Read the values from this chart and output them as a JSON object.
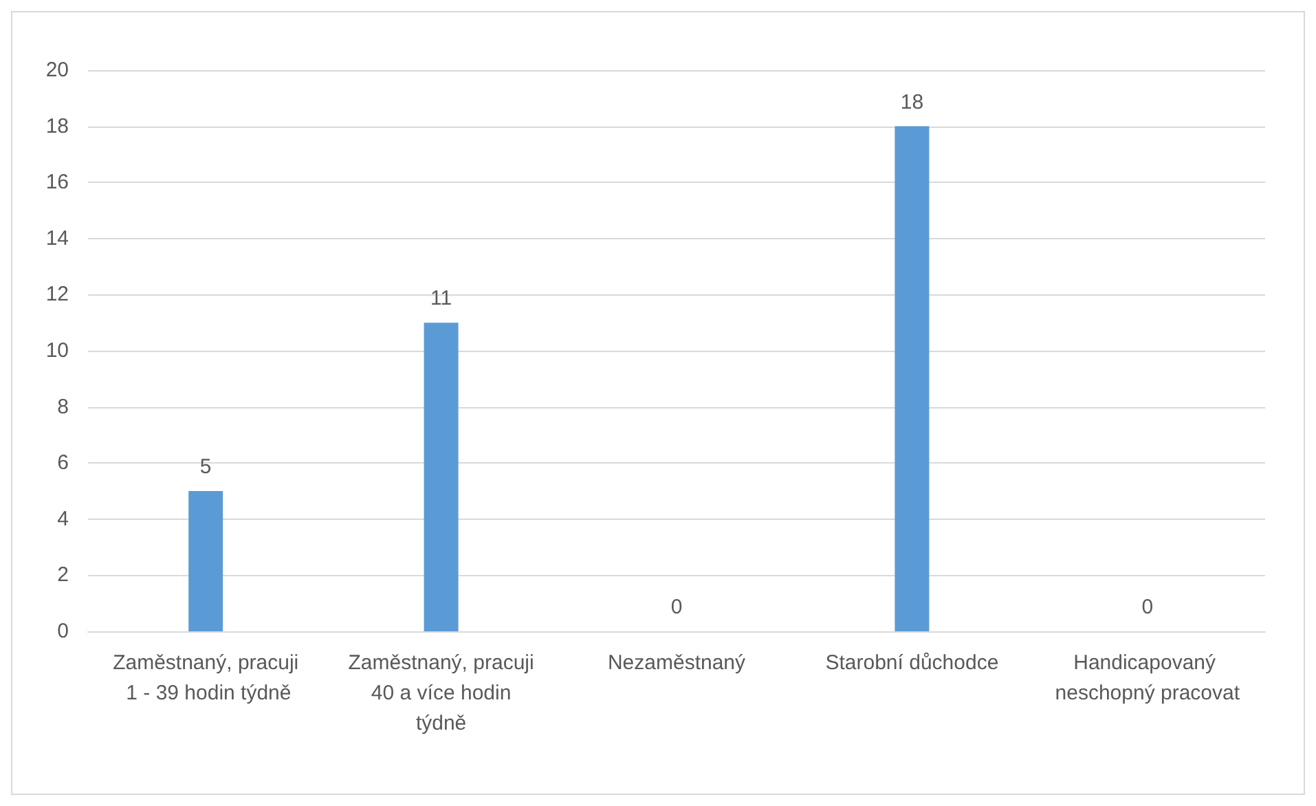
{
  "chart_data": {
    "type": "bar",
    "categories": [
      "Zaměstnaný, pracuji 1 - 39 hodin týdně",
      "Zaměstnaný, pracuji 40 a více hodin týdně",
      "Nezaměstnaný",
      "Starobní důchodce",
      "Handicapovaný neschopný pracovat"
    ],
    "values": [
      5,
      11,
      0,
      18,
      0
    ],
    "color": "#5b9bd5",
    "ylim": [
      0,
      20
    ],
    "yticks": [
      0,
      2,
      4,
      6,
      8,
      10,
      12,
      14,
      16,
      18,
      20
    ],
    "grid": "y",
    "data_labels": true
  }
}
